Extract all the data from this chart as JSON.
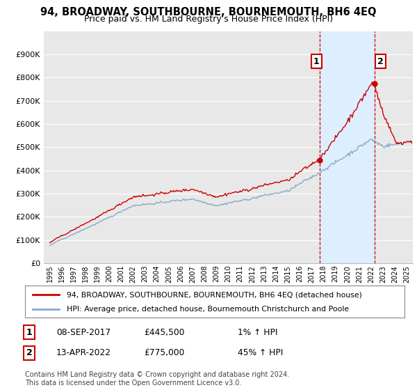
{
  "title": "94, BROADWAY, SOUTHBOURNE, BOURNEMOUTH, BH6 4EQ",
  "subtitle": "Price paid vs. HM Land Registry's House Price Index (HPI)",
  "ylabel_ticks": [
    "£0",
    "£100K",
    "£200K",
    "£300K",
    "£400K",
    "£500K",
    "£600K",
    "£700K",
    "£800K",
    "£900K"
  ],
  "ytick_values": [
    0,
    100000,
    200000,
    300000,
    400000,
    500000,
    600000,
    700000,
    800000,
    900000
  ],
  "ylim": [
    0,
    1000000
  ],
  "background_color": "#ffffff",
  "plot_bg_color": "#e8e8e8",
  "grid_color": "#ffffff",
  "sale1_year": 2017.69,
  "sale1_price": 445500,
  "sale2_year": 2022.28,
  "sale2_price": 775000,
  "sale1_date": "08-SEP-2017",
  "sale1_value": "£445,500",
  "sale1_hpi": "1% ↑ HPI",
  "sale2_date": "13-APR-2022",
  "sale2_value": "£775,000",
  "sale2_hpi": "45% ↑ HPI",
  "legend_line1": "94, BROADWAY, SOUTHBOURNE, BOURNEMOUTH, BH6 4EQ (detached house)",
  "legend_line2": "HPI: Average price, detached house, Bournemouth Christchurch and Poole",
  "footer": "Contains HM Land Registry data © Crown copyright and database right 2024.\nThis data is licensed under the Open Government Licence v3.0.",
  "property_line_color": "#cc0000",
  "hpi_line_color": "#88aacc",
  "marker_color": "#cc0000",
  "dashed_line_color": "#cc0000",
  "annotation_box_color": "#cc0000",
  "shade_color": "#ddeeff"
}
